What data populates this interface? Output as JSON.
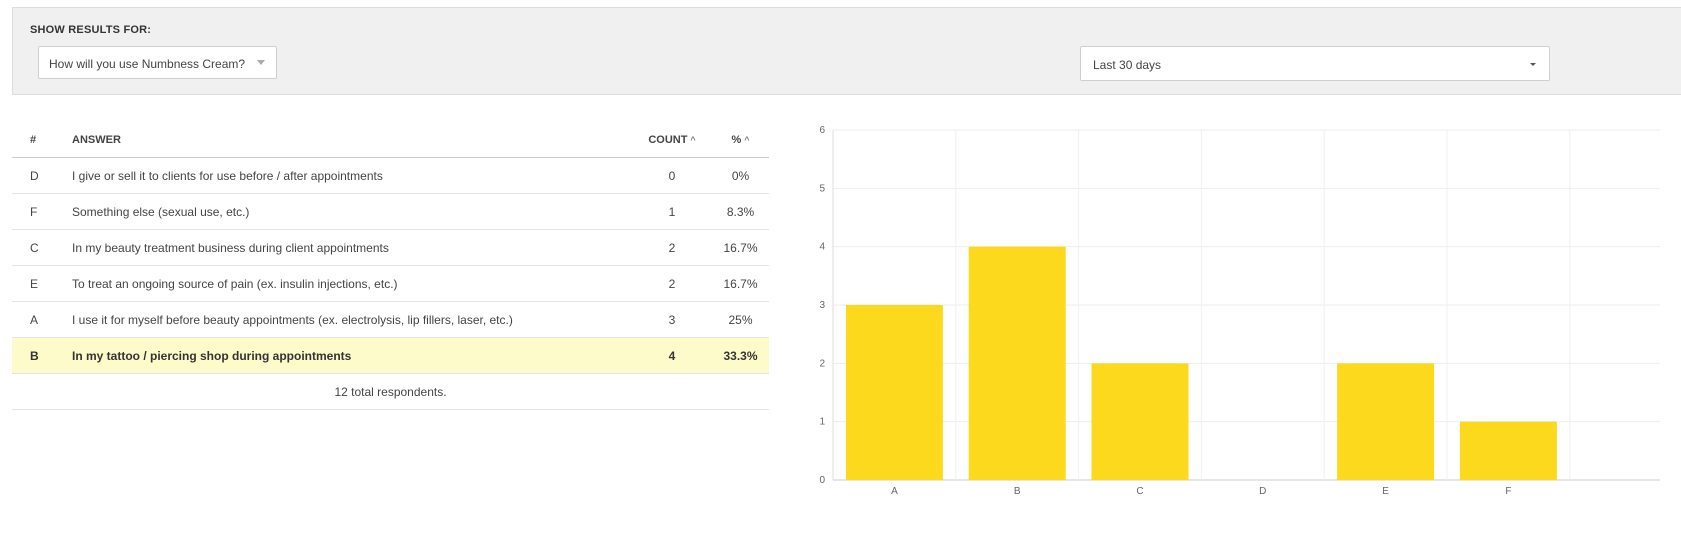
{
  "filter": {
    "label": "SHOW RESULTS FOR:",
    "question_value": "How will you use Numbness Cream?",
    "range_value": "Last 30 days"
  },
  "table": {
    "headers": {
      "number": "#",
      "answer": "ANSWER",
      "count": "COUNT",
      "percent": "%"
    },
    "rows": [
      {
        "letter": "D",
        "answer": "I give or sell it to clients for use before / after appointments",
        "count": "0",
        "percent": "0%"
      },
      {
        "letter": "F",
        "answer": "Something else (sexual use, etc.)",
        "count": "1",
        "percent": "8.3%"
      },
      {
        "letter": "C",
        "answer": "In my beauty treatment business during client appointments",
        "count": "2",
        "percent": "16.7%"
      },
      {
        "letter": "E",
        "answer": "To treat an ongoing source of pain (ex. insulin injections, etc.)",
        "count": "2",
        "percent": "16.7%"
      },
      {
        "letter": "A",
        "answer": "I use it for myself before beauty appointments (ex. electrolysis, lip fillers, laser, etc.)",
        "count": "3",
        "percent": "25%"
      },
      {
        "letter": "B",
        "answer": "In my tattoo / piercing shop during appointments",
        "count": "4",
        "percent": "33.3%"
      }
    ],
    "total": "12 total respondents."
  },
  "chart_data": {
    "type": "bar",
    "categories": [
      "A",
      "B",
      "C",
      "D",
      "E",
      "F"
    ],
    "values": [
      3,
      4,
      2,
      0,
      2,
      1
    ],
    "title": "",
    "xlabel": "",
    "ylabel": "",
    "ylim": [
      0,
      6
    ],
    "yticks": [
      0,
      1,
      2,
      3,
      4,
      5,
      6
    ],
    "grid": true,
    "bar_color": "#fdd91e"
  },
  "colors": {
    "highlight_row": "#fefbcb",
    "panel_bg": "#f0f0f0"
  }
}
